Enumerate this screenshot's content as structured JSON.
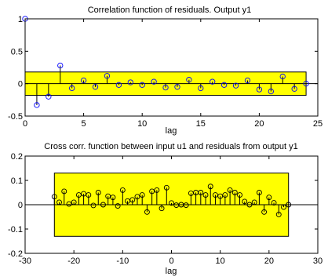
{
  "chart_data": [
    {
      "type": "stem",
      "title": "Correlation function of residuals. Output y1",
      "xlabel": "lag",
      "ylabel": "",
      "xlim": [
        0,
        25
      ],
      "ylim": [
        -0.5,
        1
      ],
      "xticks": [
        0,
        5,
        10,
        15,
        20,
        25
      ],
      "yticks": [
        -0.5,
        0,
        0.5,
        1
      ],
      "xtick_labels": [
        "0",
        "5",
        "10",
        "15",
        "20",
        "25"
      ],
      "ytick_labels": [
        "-0.5",
        "0",
        "0.5",
        "1"
      ],
      "confidence_band": [
        -0.18,
        0.18
      ],
      "x": [
        0,
        1,
        2,
        3,
        4,
        5,
        6,
        7,
        8,
        9,
        10,
        11,
        12,
        13,
        14,
        15,
        16,
        17,
        18,
        19,
        20,
        21,
        22,
        23,
        24
      ],
      "values": [
        1.0,
        -0.33,
        -0.2,
        0.28,
        -0.07,
        0.05,
        -0.05,
        0.12,
        -0.02,
        0.02,
        -0.02,
        0.03,
        -0.06,
        -0.05,
        0.06,
        -0.07,
        0.03,
        -0.02,
        -0.03,
        0.05,
        -0.09,
        -0.12,
        0.11,
        -0.08,
        0.0
      ],
      "colors": {
        "stem": "#000000",
        "marker": "#0000ff",
        "band": "#ffff00",
        "band_edge": "#000000"
      }
    },
    {
      "type": "stem",
      "title": "Cross corr. function between input u1 and residuals from output y1",
      "xlabel": "lag",
      "ylabel": "",
      "xlim": [
        -30,
        30
      ],
      "ylim": [
        -0.2,
        0.2
      ],
      "xticks": [
        -30,
        -20,
        -10,
        0,
        10,
        20,
        30
      ],
      "yticks": [
        -0.2,
        -0.1,
        0,
        0.1,
        0.2
      ],
      "xtick_labels": [
        "-30",
        "-20",
        "-10",
        "0",
        "10",
        "20",
        "30"
      ],
      "ytick_labels": [
        "-0.2",
        "-0.1",
        "0",
        "0.1",
        "0.2"
      ],
      "confidence_band": [
        -0.13,
        0.13
      ],
      "x": [
        -24,
        -23,
        -22,
        -21,
        -20,
        -19,
        -18,
        -17,
        -16,
        -15,
        -14,
        -13,
        -12,
        -11,
        -10,
        -9,
        -8,
        -7,
        -6,
        -5,
        -4,
        -3,
        -2,
        -1,
        0,
        1,
        2,
        3,
        4,
        5,
        6,
        7,
        8,
        9,
        10,
        11,
        12,
        13,
        14,
        15,
        16,
        17,
        18,
        19,
        20,
        21,
        22,
        23,
        24
      ],
      "values": [
        0.033,
        0.01,
        0.055,
        0.003,
        0.01,
        0.04,
        0.045,
        0.04,
        -0.003,
        0.05,
        0.0,
        0.035,
        0.03,
        -0.005,
        0.06,
        0.015,
        0.02,
        0.033,
        0.04,
        -0.03,
        0.055,
        0.06,
        -0.015,
        0.07,
        0.007,
        -0.002,
        0.0,
        -0.002,
        0.047,
        0.05,
        0.05,
        0.04,
        0.075,
        0.04,
        0.035,
        0.04,
        0.06,
        0.05,
        0.04,
        0.013,
        0.0,
        0.01,
        0.05,
        -0.03,
        0.03,
        0.008,
        -0.04,
        -0.01,
        0.0
      ],
      "colors": {
        "stem": "#000000",
        "marker": "#000000",
        "band": "#ffff00",
        "band_edge": "#000000"
      }
    }
  ]
}
